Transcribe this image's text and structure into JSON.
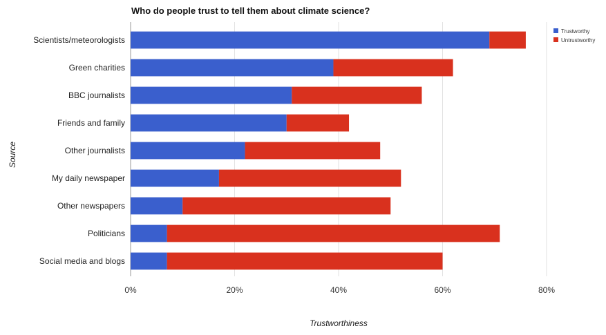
{
  "chart_data": {
    "type": "bar",
    "orientation": "horizontal",
    "stacked": true,
    "title": "Who do people trust to tell them about climate science?",
    "xlabel": "Trustworthiness",
    "ylabel": "Source",
    "categories": [
      "Scientists/meteorologists",
      "Green charities",
      "BBC journalists",
      "Friends and family",
      "Other journalists",
      "My daily newspaper",
      "Other newspapers",
      "Politicians",
      "Social media and blogs"
    ],
    "series": [
      {
        "name": "Trustworthy",
        "color": "#3a5fcd",
        "values": [
          69,
          39,
          31,
          30,
          22,
          17,
          10,
          7,
          7
        ]
      },
      {
        "name": "Untrustworthy",
        "color": "#d9311e",
        "values": [
          7,
          23,
          25,
          12,
          26,
          35,
          40,
          64,
          53
        ]
      }
    ],
    "xlim": [
      0,
      80
    ],
    "xticks": [
      "0%",
      "20%",
      "40%",
      "60%",
      "80%"
    ],
    "xtick_values": [
      0,
      20,
      40,
      60,
      80
    ],
    "grid": true,
    "legend_position": "top-right"
  }
}
